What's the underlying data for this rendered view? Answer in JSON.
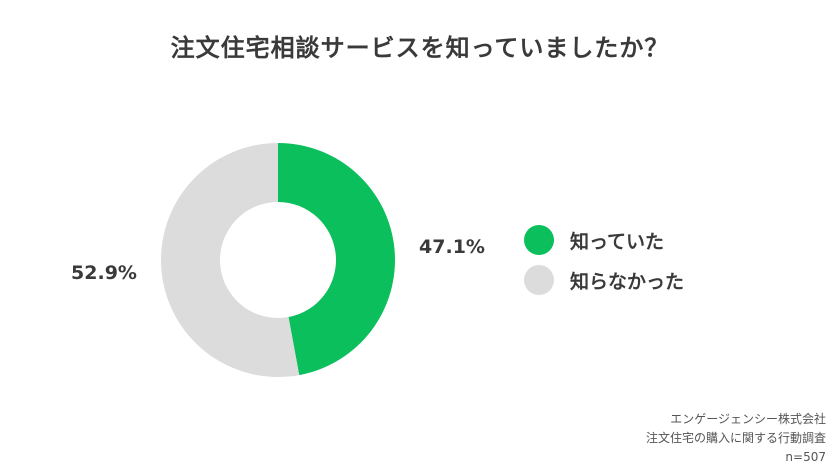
{
  "chart_data": {
    "type": "pie",
    "style": "donut",
    "title": "注文住宅相談サービスを知っていましたか？",
    "categories": [
      "知っていた",
      "知らなかった"
    ],
    "values": [
      47.1,
      52.9
    ],
    "value_labels": [
      "47.1%",
      "52.9%"
    ],
    "colors": [
      "#0abf5c",
      "#dcdcdc"
    ],
    "legend": {
      "position": "right",
      "items": [
        {
          "label": "知っていた",
          "color": "#0abf5c"
        },
        {
          "label": "知らなかった",
          "color": "#dcdcdc"
        }
      ]
    }
  },
  "footer": {
    "company": "エンゲージェンシー株式会社",
    "survey": "注文住宅の購入に関する行動調査",
    "sample": "n=507"
  }
}
